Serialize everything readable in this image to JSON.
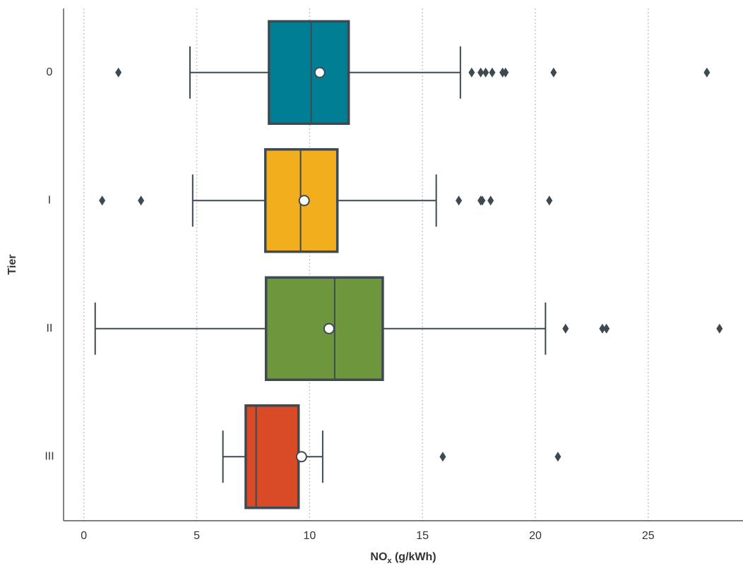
{
  "chart_data": {
    "type": "box",
    "x_label": {
      "main": "NO",
      "sub": "x",
      "unit": " (g/kWh)"
    },
    "y_label": "Tier",
    "categories": [
      "0",
      "I",
      "II",
      "III"
    ],
    "colors": [
      "#007e94",
      "#f2ae1c",
      "#6d963d",
      "#d94b27"
    ],
    "boxes": [
      {
        "whislo": 4.7,
        "q1": 8.2,
        "med": 10.07,
        "q3": 11.73,
        "whishi": 16.68,
        "mean": 10.45,
        "fliers": [
          1.53,
          17.18,
          17.58,
          17.8,
          18.09,
          18.55,
          18.68,
          20.81,
          27.6
        ]
      },
      {
        "whislo": 4.82,
        "q1": 8.04,
        "med": 9.6,
        "q3": 11.23,
        "whishi": 15.61,
        "mean": 9.76,
        "fliers": [
          0.81,
          2.53,
          16.61,
          17.58,
          17.65,
          18.02,
          20.62
        ]
      },
      {
        "whislo": 0.5,
        "q1": 8.07,
        "med": 11.11,
        "q3": 13.24,
        "whishi": 20.45,
        "mean": 10.86,
        "fliers": [
          21.34,
          22.97,
          23.15,
          28.16
        ]
      },
      {
        "whislo": 6.16,
        "q1": 7.17,
        "med": 7.63,
        "q3": 9.51,
        "whishi": 10.58,
        "mean": 9.64,
        "fliers": [
          15.9,
          21.0
        ]
      }
    ],
    "xlim": [
      -0.9,
      29.2
    ],
    "xticks": [
      0,
      5,
      10,
      15,
      20,
      25
    ],
    "grid": true
  }
}
